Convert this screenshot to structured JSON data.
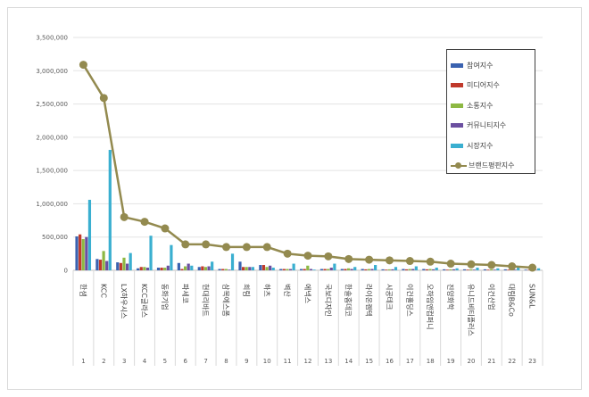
{
  "chart_data": {
    "type": "bar",
    "combo": "bar + line",
    "categories": [
      "한샘",
      "KCC",
      "LX하우시스",
      "KCC글라스",
      "동화기업",
      "파세코",
      "현대리바트",
      "삼목에스폼",
      "희림",
      "하츠",
      "벽산",
      "에넥스",
      "국보디자인",
      "한솔홈데코",
      "라이온켐텍",
      "시공테크",
      "이건홀딩스",
      "오하임앤컴퍼니",
      "진양화학",
      "유니드비티플러스",
      "이건산업",
      "대림B&Co",
      "SUN&L"
    ],
    "ranks": [
      "1",
      "2",
      "3",
      "4",
      "5",
      "6",
      "7",
      "8",
      "9",
      "10",
      "11",
      "12",
      "13",
      "14",
      "15",
      "16",
      "17",
      "18",
      "19",
      "20",
      "21",
      "22",
      "23"
    ],
    "yticks": [
      "0",
      "500,000",
      "1,000,000",
      "1,500,000",
      "2,000,000",
      "2,500,000",
      "3,000,000",
      "3,500,000"
    ],
    "ylim": [
      0,
      3500000
    ],
    "grid": true,
    "legend_placement": "right",
    "series": [
      {
        "name": "참여지수",
        "type": "bar",
        "color": "#3A62B0",
        "values": [
          510000,
          170000,
          120000,
          30000,
          40000,
          110000,
          50000,
          20000,
          130000,
          80000,
          20000,
          20000,
          20000,
          20000,
          20000,
          15000,
          20000,
          20000,
          15000,
          15000,
          15000,
          15000,
          10000
        ]
      },
      {
        "name": "미디어지수",
        "type": "bar",
        "color": "#C0392B",
        "values": [
          540000,
          160000,
          110000,
          50000,
          40000,
          20000,
          60000,
          20000,
          50000,
          80000,
          20000,
          20000,
          20000,
          20000,
          15000,
          10000,
          15000,
          15000,
          10000,
          10000,
          10000,
          10000,
          8000
        ]
      },
      {
        "name": "소통지수",
        "type": "bar",
        "color": "#8DB843",
        "values": [
          470000,
          290000,
          190000,
          50000,
          40000,
          60000,
          50000,
          20000,
          50000,
          50000,
          20000,
          70000,
          20000,
          30000,
          20000,
          15000,
          20000,
          20000,
          15000,
          15000,
          15000,
          15000,
          10000
        ]
      },
      {
        "name": "커뮤니티지수",
        "type": "bar",
        "color": "#6B4FA0",
        "values": [
          500000,
          140000,
          100000,
          40000,
          70000,
          100000,
          60000,
          10000,
          50000,
          70000,
          20000,
          20000,
          40000,
          20000,
          20000,
          15000,
          20000,
          15000,
          15000,
          10000,
          10000,
          10000,
          8000
        ]
      },
      {
        "name": "시장지수",
        "type": "bar",
        "color": "#3AAFD0",
        "values": [
          1060000,
          1810000,
          260000,
          520000,
          380000,
          70000,
          130000,
          250000,
          50000,
          40000,
          100000,
          10000,
          100000,
          50000,
          80000,
          50000,
          60000,
          40000,
          30000,
          40000,
          30000,
          40000,
          30000
        ]
      },
      {
        "name": "브랜드평판지수",
        "type": "line",
        "color": "#938A4F",
        "values": [
          3090000,
          2590000,
          800000,
          730000,
          630000,
          390000,
          390000,
          350000,
          350000,
          350000,
          250000,
          220000,
          210000,
          170000,
          160000,
          150000,
          140000,
          130000,
          100000,
          90000,
          80000,
          60000,
          40000
        ]
      }
    ]
  }
}
